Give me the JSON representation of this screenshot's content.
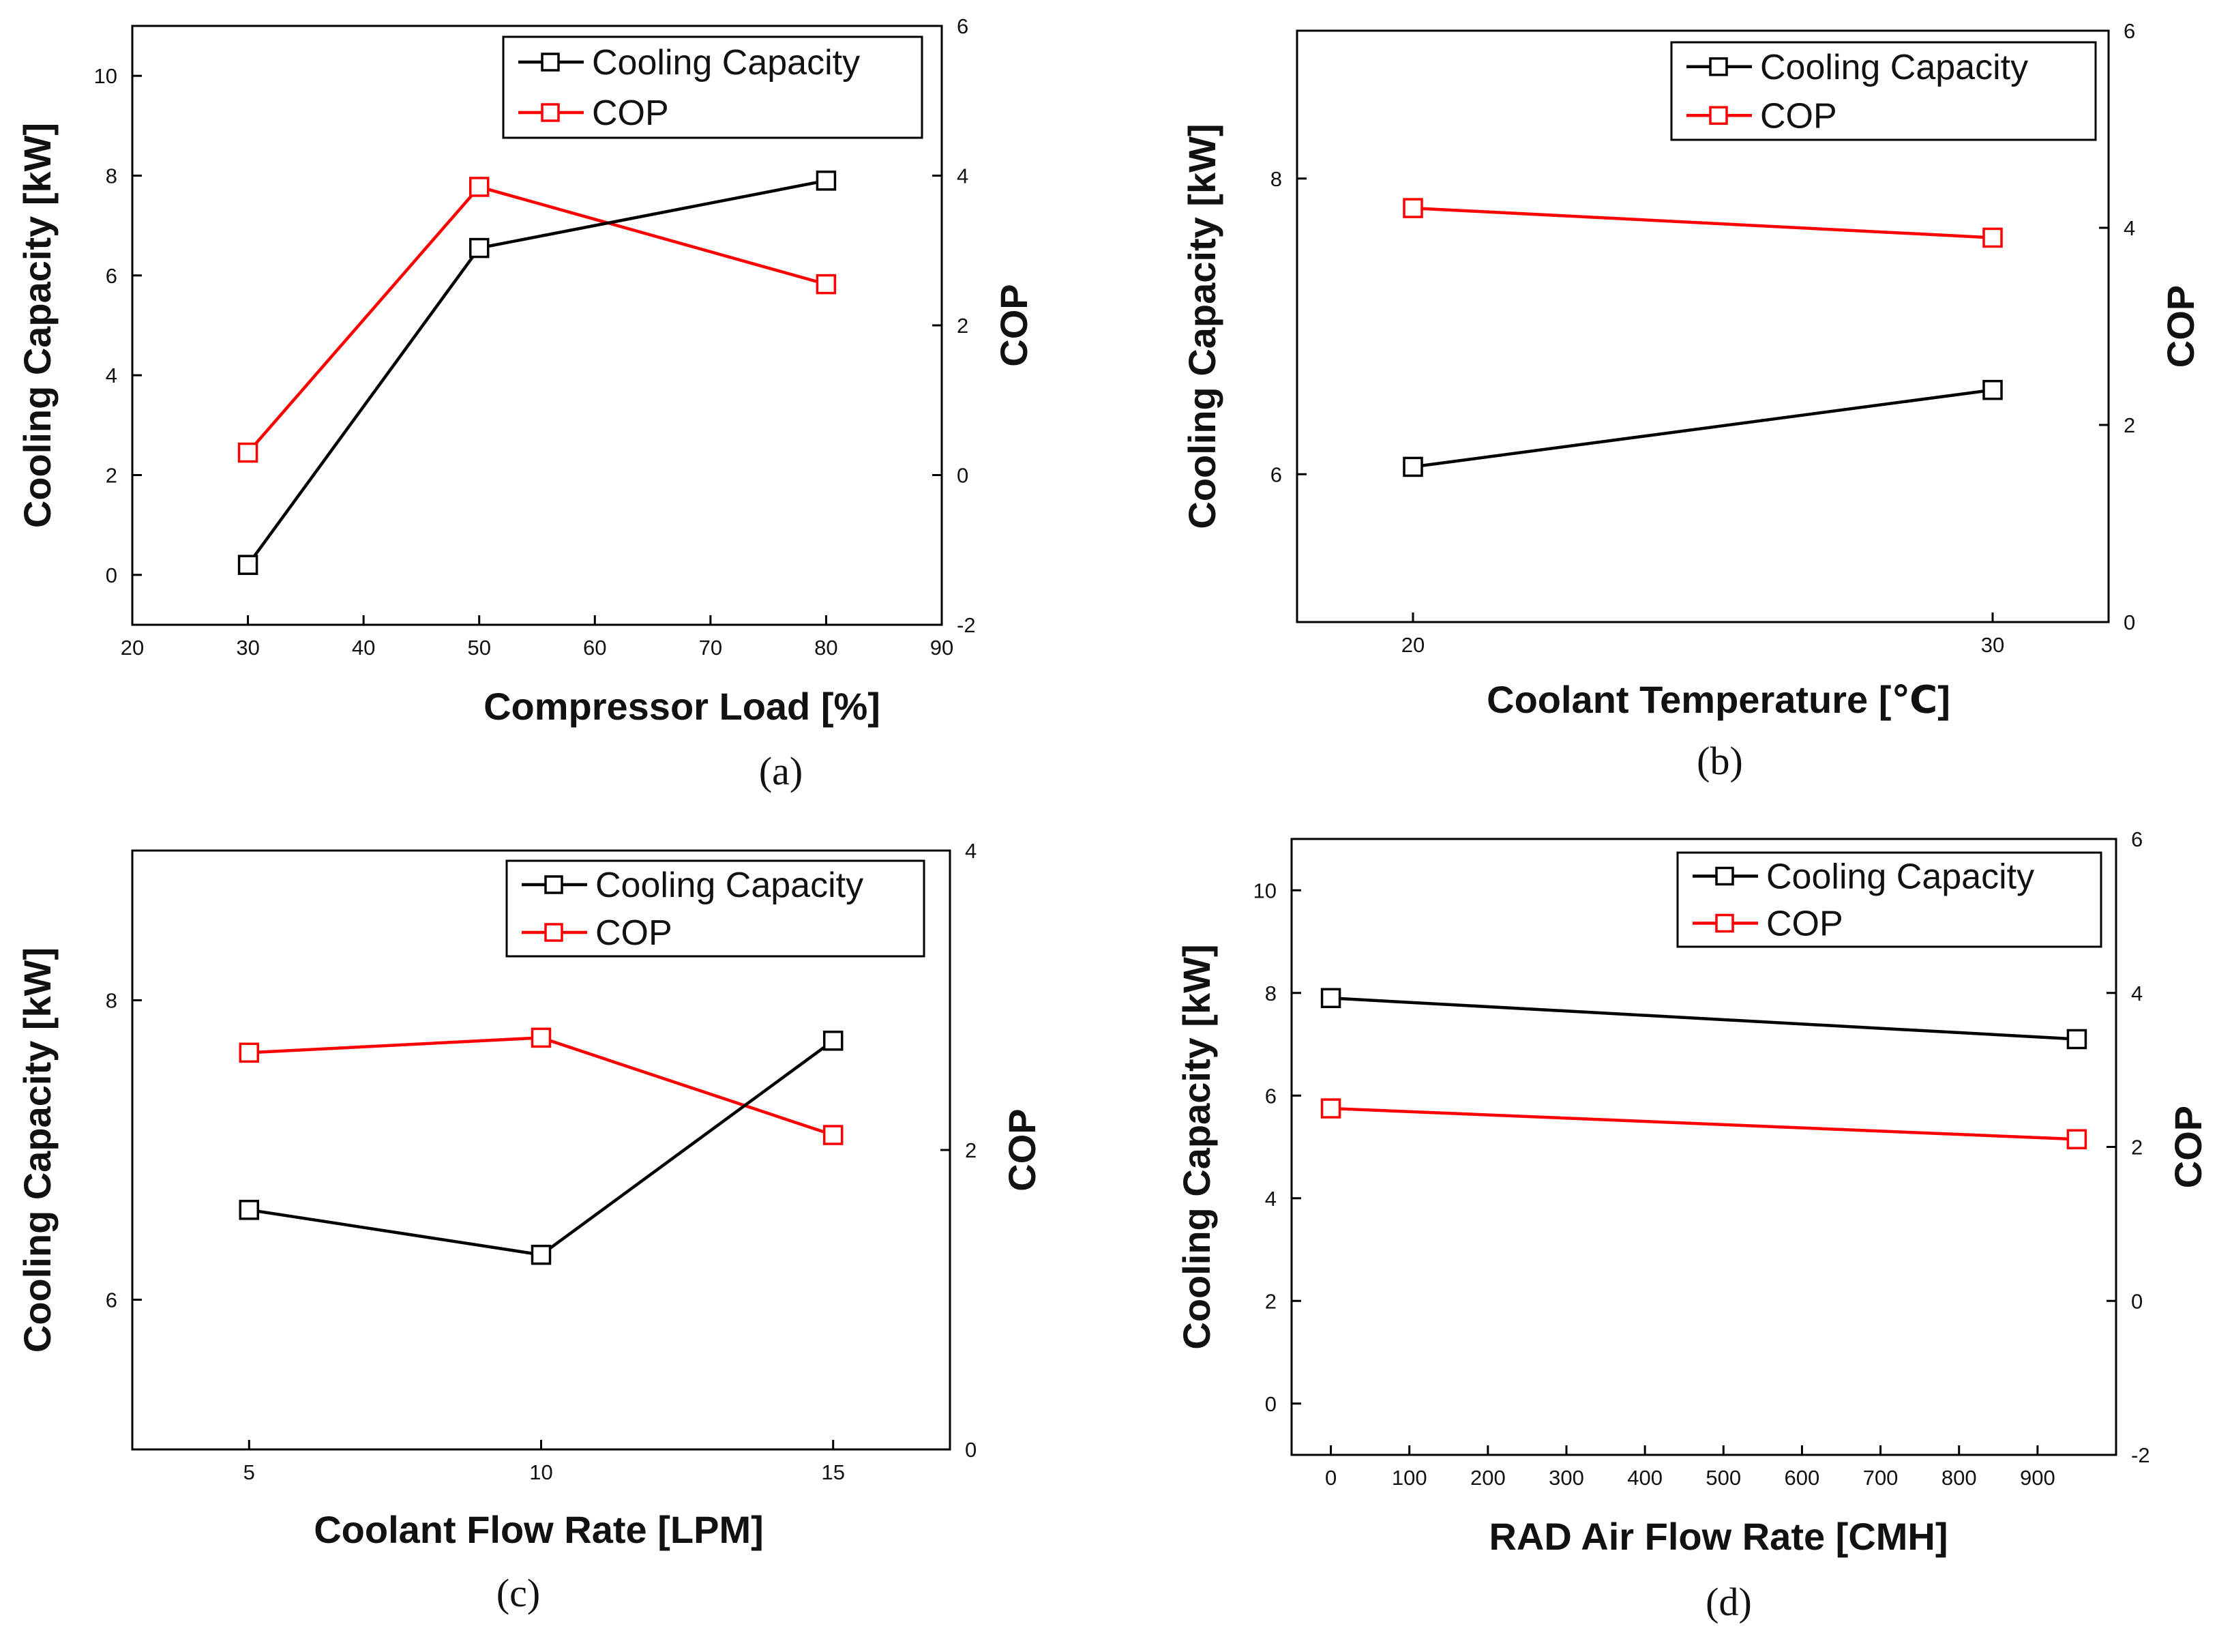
{
  "chart_data": [
    {
      "type": "line",
      "panel": "(a)",
      "caption": "(a)",
      "xlabel": "Compressor Load [%]",
      "ylabel": "Cooling Capacity [kW]",
      "y2label": "COP",
      "xlim": [
        20,
        90
      ],
      "ylim": [
        -1,
        11
      ],
      "y2lim": [
        -2,
        6
      ],
      "xticks": [
        20,
        30,
        40,
        50,
        60,
        70,
        80,
        90
      ],
      "yticks": [
        0,
        2,
        4,
        6,
        8,
        10
      ],
      "y2ticks": [
        -2,
        0,
        2,
        4,
        6
      ],
      "legend_position": "top-right",
      "x": [
        30,
        50,
        80
      ],
      "series": [
        {
          "name": "Cooling Capacity",
          "axis": "left",
          "color": "#000000",
          "values": [
            0.2,
            6.55,
            7.9
          ]
        },
        {
          "name": "COP",
          "axis": "right",
          "color": "#ff0000",
          "values": [
            0.3,
            3.85,
            2.55
          ]
        }
      ]
    },
    {
      "type": "line",
      "panel": "(b)",
      "caption": "(b)",
      "xlabel": "Coolant Temperature [℃]",
      "ylabel": "Cooling Capacity [kW]",
      "y2label": "COP",
      "xlim": [
        18,
        32
      ],
      "ylim": [
        5,
        9
      ],
      "y2lim": [
        0,
        6
      ],
      "xticks": [
        20,
        30
      ],
      "yticks": [
        6,
        8
      ],
      "y2ticks": [
        0,
        2,
        4,
        6
      ],
      "legend_position": "top-right",
      "x": [
        20,
        30
      ],
      "series": [
        {
          "name": "Cooling Capacity",
          "axis": "left",
          "color": "#000000",
          "values": [
            6.05,
            6.57
          ]
        },
        {
          "name": "COP",
          "axis": "right",
          "color": "#ff0000",
          "values": [
            4.2,
            3.9
          ]
        }
      ]
    },
    {
      "type": "line",
      "panel": "(c)",
      "caption": "(c)",
      "xlabel": "Coolant Flow Rate [LPM]",
      "ylabel": "Cooling Capacity [kW]",
      "y2label": "COP",
      "xlim": [
        3,
        17
      ],
      "ylim": [
        5,
        9
      ],
      "y2lim": [
        0,
        4
      ],
      "xticks": [
        5,
        10,
        15
      ],
      "yticks": [
        6,
        8
      ],
      "y2ticks": [
        0,
        2,
        4
      ],
      "legend_position": "top-right",
      "x": [
        5,
        10,
        15
      ],
      "series": [
        {
          "name": "Cooling Capacity",
          "axis": "left",
          "color": "#000000",
          "values": [
            6.6,
            6.3,
            7.73
          ]
        },
        {
          "name": "COP",
          "axis": "right",
          "color": "#ff0000",
          "values": [
            2.65,
            2.75,
            2.1
          ]
        }
      ]
    },
    {
      "type": "line",
      "panel": "(d)",
      "caption": "(d)",
      "xlabel": "RAD Air Flow Rate [CMH]",
      "ylabel": "Cooling Capacity [kW]",
      "y2label": "COP",
      "xlim": [
        -50,
        1000
      ],
      "ylim": [
        -1,
        11
      ],
      "y2lim": [
        -2,
        6
      ],
      "xticks": [
        0,
        100,
        200,
        300,
        400,
        500,
        600,
        700,
        800,
        900
      ],
      "yticks": [
        0,
        2,
        4,
        6,
        8,
        10
      ],
      "y2ticks": [
        -2,
        0,
        2,
        4,
        6
      ],
      "legend_position": "top-right",
      "x": [
        0,
        950
      ],
      "series": [
        {
          "name": "Cooling Capacity",
          "axis": "left",
          "color": "#000000",
          "values": [
            7.9,
            7.1
          ]
        },
        {
          "name": "COP",
          "axis": "right",
          "color": "#ff0000",
          "values": [
            2.5,
            2.1
          ]
        }
      ]
    }
  ]
}
